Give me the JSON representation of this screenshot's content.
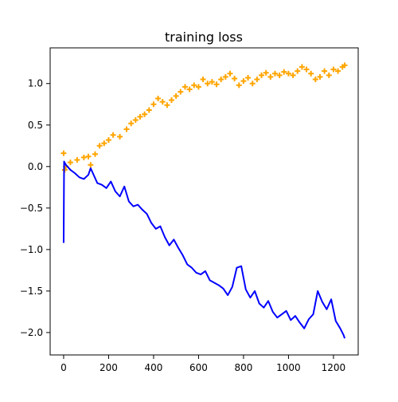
{
  "chart_data": {
    "type": "line",
    "title": "training loss",
    "xlabel": "",
    "ylabel": "",
    "xlim": [
      -60,
      1310
    ],
    "ylim": [
      -2.27,
      1.43
    ],
    "x_ticks": [
      0,
      200,
      400,
      600,
      800,
      1000,
      1200
    ],
    "x_tick_labels": [
      "0",
      "200",
      "400",
      "600",
      "800",
      "1000",
      "1200"
    ],
    "y_ticks": [
      1.0,
      0.5,
      0.0,
      -0.5,
      -1.0,
      -1.5,
      -2.0
    ],
    "y_tick_labels": [
      "1.0",
      "0.5",
      "0.0",
      "−0.5",
      "−1.0",
      "−1.5",
      "−2.0"
    ],
    "grid": false,
    "legend": "none",
    "series": [
      {
        "color": "#ffa500",
        "marker": "plus",
        "style": "markers",
        "points": [
          [
            0,
            0.16
          ],
          [
            5,
            -0.04
          ],
          [
            10,
            0.0
          ],
          [
            30,
            0.05
          ],
          [
            60,
            0.08
          ],
          [
            90,
            0.11
          ],
          [
            110,
            0.12
          ],
          [
            120,
            0.02
          ],
          [
            140,
            0.15
          ],
          [
            160,
            0.25
          ],
          [
            180,
            0.28
          ],
          [
            200,
            0.32
          ],
          [
            220,
            0.38
          ],
          [
            250,
            0.36
          ],
          [
            280,
            0.45
          ],
          [
            300,
            0.52
          ],
          [
            320,
            0.56
          ],
          [
            340,
            0.6
          ],
          [
            360,
            0.63
          ],
          [
            380,
            0.68
          ],
          [
            400,
            0.75
          ],
          [
            420,
            0.82
          ],
          [
            440,
            0.78
          ],
          [
            460,
            0.74
          ],
          [
            480,
            0.8
          ],
          [
            500,
            0.85
          ],
          [
            520,
            0.9
          ],
          [
            540,
            0.96
          ],
          [
            560,
            0.93
          ],
          [
            580,
            0.98
          ],
          [
            600,
            0.96
          ],
          [
            620,
            1.05
          ],
          [
            640,
            1.0
          ],
          [
            660,
            1.02
          ],
          [
            680,
            0.99
          ],
          [
            700,
            1.05
          ],
          [
            720,
            1.08
          ],
          [
            740,
            1.12
          ],
          [
            760,
            1.06
          ],
          [
            780,
            0.98
          ],
          [
            800,
            1.03
          ],
          [
            820,
            1.07
          ],
          [
            840,
            1.0
          ],
          [
            860,
            1.05
          ],
          [
            880,
            1.1
          ],
          [
            900,
            1.13
          ],
          [
            920,
            1.08
          ],
          [
            940,
            1.12
          ],
          [
            960,
            1.1
          ],
          [
            980,
            1.14
          ],
          [
            1000,
            1.12
          ],
          [
            1020,
            1.1
          ],
          [
            1040,
            1.15
          ],
          [
            1060,
            1.2
          ],
          [
            1080,
            1.17
          ],
          [
            1100,
            1.12
          ],
          [
            1120,
            1.05
          ],
          [
            1140,
            1.08
          ],
          [
            1160,
            1.15
          ],
          [
            1180,
            1.1
          ],
          [
            1200,
            1.17
          ],
          [
            1220,
            1.15
          ],
          [
            1240,
            1.2
          ],
          [
            1250,
            1.22
          ]
        ]
      },
      {
        "color": "#0000ff",
        "marker": "none",
        "style": "line",
        "points": [
          [
            0,
            -0.92
          ],
          [
            2,
            0.06
          ],
          [
            10,
            0.02
          ],
          [
            30,
            -0.04
          ],
          [
            50,
            -0.08
          ],
          [
            70,
            -0.13
          ],
          [
            90,
            -0.15
          ],
          [
            110,
            -0.1
          ],
          [
            120,
            -0.02
          ],
          [
            130,
            -0.08
          ],
          [
            150,
            -0.2
          ],
          [
            170,
            -0.22
          ],
          [
            190,
            -0.26
          ],
          [
            210,
            -0.18
          ],
          [
            230,
            -0.3
          ],
          [
            250,
            -0.36
          ],
          [
            270,
            -0.24
          ],
          [
            290,
            -0.42
          ],
          [
            310,
            -0.48
          ],
          [
            330,
            -0.46
          ],
          [
            350,
            -0.52
          ],
          [
            370,
            -0.57
          ],
          [
            390,
            -0.68
          ],
          [
            410,
            -0.75
          ],
          [
            430,
            -0.72
          ],
          [
            450,
            -0.85
          ],
          [
            470,
            -0.95
          ],
          [
            490,
            -0.88
          ],
          [
            510,
            -0.98
          ],
          [
            530,
            -1.07
          ],
          [
            550,
            -1.18
          ],
          [
            570,
            -1.22
          ],
          [
            590,
            -1.28
          ],
          [
            610,
            -1.3
          ],
          [
            630,
            -1.26
          ],
          [
            650,
            -1.37
          ],
          [
            670,
            -1.4
          ],
          [
            690,
            -1.43
          ],
          [
            710,
            -1.47
          ],
          [
            730,
            -1.55
          ],
          [
            750,
            -1.45
          ],
          [
            770,
            -1.22
          ],
          [
            790,
            -1.2
          ],
          [
            810,
            -1.48
          ],
          [
            830,
            -1.58
          ],
          [
            850,
            -1.5
          ],
          [
            870,
            -1.65
          ],
          [
            890,
            -1.7
          ],
          [
            910,
            -1.62
          ],
          [
            930,
            -1.75
          ],
          [
            950,
            -1.82
          ],
          [
            970,
            -1.78
          ],
          [
            990,
            -1.74
          ],
          [
            1010,
            -1.85
          ],
          [
            1030,
            -1.8
          ],
          [
            1050,
            -1.88
          ],
          [
            1070,
            -1.95
          ],
          [
            1090,
            -1.84
          ],
          [
            1110,
            -1.78
          ],
          [
            1130,
            -1.5
          ],
          [
            1150,
            -1.63
          ],
          [
            1170,
            -1.72
          ],
          [
            1190,
            -1.6
          ],
          [
            1210,
            -1.86
          ],
          [
            1230,
            -1.95
          ],
          [
            1245,
            -2.03
          ],
          [
            1250,
            -2.07
          ]
        ]
      }
    ]
  }
}
